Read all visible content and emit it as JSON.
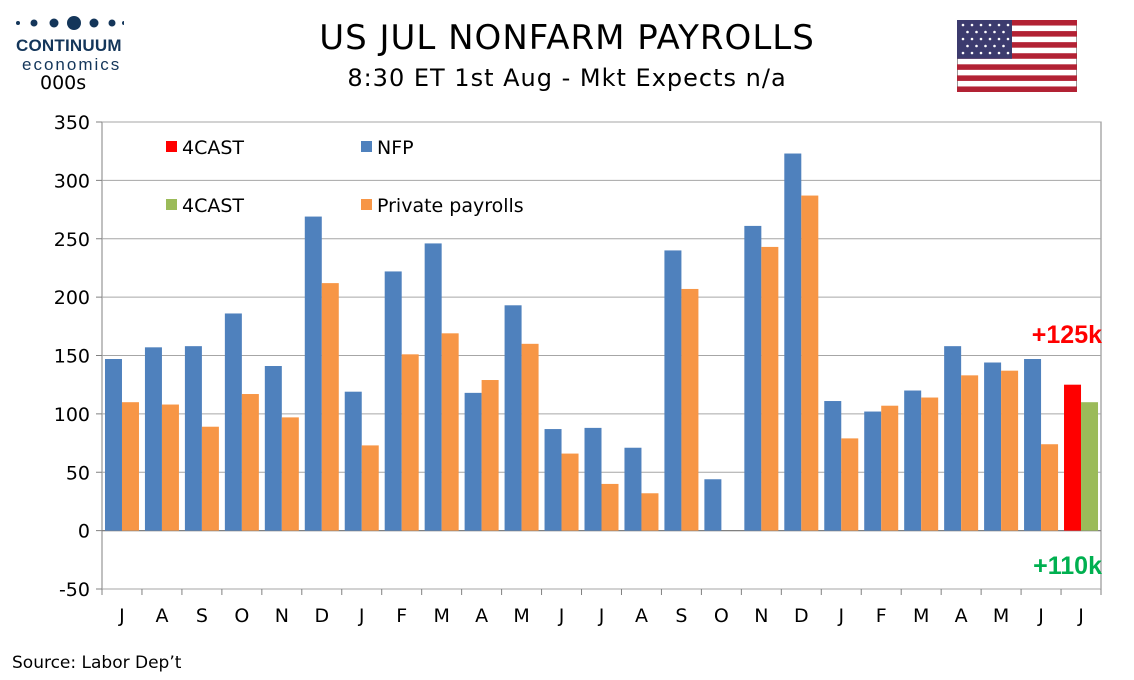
{
  "header": {
    "logo_name": "CONTINUUM",
    "logo_sub": "economics",
    "unit": "000s",
    "title": "US JUL NONFARM PAYROLLS",
    "subtitle": "8:30 ET 1st Aug - Mkt Expects n/a",
    "source": "Source: Labor Dep’t"
  },
  "colors": {
    "nfp": "#4f81bd",
    "private": "#f79646",
    "forecast_nfp": "#ff0000",
    "forecast_private": "#9bbb59",
    "logo": "#14365a",
    "annotation_red": "#ff0000",
    "annotation_green": "#00b050",
    "grid": "#a6a6a6"
  },
  "chart_data": {
    "type": "bar",
    "title": "US JUL NONFARM PAYROLLS",
    "subtitle": "8:30 ET 1st Aug - Mkt Expects n/a",
    "ylabel": "000s",
    "ylim": [
      -50,
      350
    ],
    "yticks": [
      350,
      300,
      250,
      200,
      150,
      100,
      50,
      0,
      -50
    ],
    "grid": true,
    "legend_position": "top-left",
    "categories": [
      "J",
      "A",
      "S",
      "O",
      "N",
      "D",
      "J",
      "F",
      "M",
      "A",
      "M",
      "J",
      "J",
      "A",
      "S",
      "O",
      "N",
      "D",
      "J",
      "F",
      "M",
      "A",
      "M",
      "J",
      "J"
    ],
    "series": [
      {
        "name": "NFP",
        "color": "#4f81bd",
        "values": [
          147,
          157,
          158,
          186,
          141,
          269,
          119,
          222,
          246,
          118,
          193,
          87,
          88,
          71,
          240,
          44,
          261,
          323,
          111,
          102,
          120,
          158,
          144,
          147,
          null
        ]
      },
      {
        "name": "Private payrolls",
        "color": "#f79646",
        "values": [
          110,
          108,
          89,
          117,
          97,
          212,
          73,
          151,
          169,
          129,
          160,
          66,
          40,
          32,
          207,
          0,
          243,
          287,
          79,
          107,
          114,
          133,
          137,
          74,
          null
        ]
      },
      {
        "name": "4CAST",
        "color": "#ff0000",
        "values": [
          null,
          null,
          null,
          null,
          null,
          null,
          null,
          null,
          null,
          null,
          null,
          null,
          null,
          null,
          null,
          null,
          null,
          null,
          null,
          null,
          null,
          null,
          null,
          null,
          125
        ]
      },
      {
        "name": "4CAST",
        "color": "#9bbb59",
        "values": [
          null,
          null,
          null,
          null,
          null,
          null,
          null,
          null,
          null,
          null,
          null,
          null,
          null,
          null,
          null,
          null,
          null,
          null,
          null,
          null,
          null,
          null,
          null,
          null,
          110
        ]
      }
    ],
    "legend": [
      {
        "label": "4CAST",
        "color": "#ff0000"
      },
      {
        "label": "NFP",
        "color": "#4f81bd"
      },
      {
        "label": "4CAST",
        "color": "#9bbb59"
      },
      {
        "label": "Private payrolls",
        "color": "#f79646"
      }
    ],
    "annotations": [
      {
        "text": "+125k",
        "color": "#ff0000"
      },
      {
        "text": "+110k",
        "color": "#00b050"
      }
    ]
  }
}
